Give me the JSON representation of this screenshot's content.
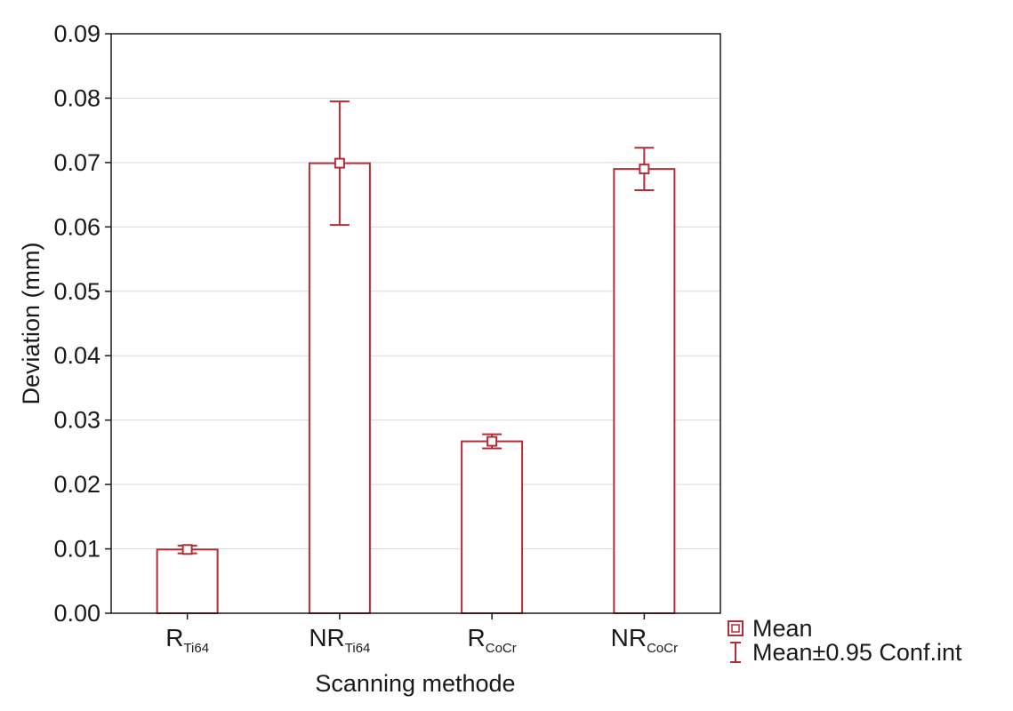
{
  "chart_data": {
    "type": "bar",
    "xlabel": "Scanning methode",
    "ylabel": "Deviation (mm)",
    "ylim": [
      0,
      0.09
    ],
    "yticks": [
      "0.00",
      "0.01",
      "0.02",
      "0.03",
      "0.04",
      "0.05",
      "0.06",
      "0.07",
      "0.08",
      "0.09"
    ],
    "grid": true,
    "categories": [
      {
        "main": "R",
        "sub": "Ti64"
      },
      {
        "main": "NR",
        "sub": "Ti64"
      },
      {
        "main": "R",
        "sub": "CoCr"
      },
      {
        "main": "NR",
        "sub": "CoCr"
      }
    ],
    "series": [
      {
        "name": "Mean",
        "values": [
          0.0099,
          0.0699,
          0.0267,
          0.069
        ],
        "ci_lower": [
          0.0093,
          0.0603,
          0.0256,
          0.0657
        ],
        "ci_upper": [
          0.0105,
          0.0795,
          0.0278,
          0.0723
        ]
      }
    ],
    "legend": {
      "position": "bottom-right",
      "items": [
        "Mean",
        "Mean±0.95 Conf.int"
      ]
    },
    "colors": {
      "bar": "#b22d35",
      "grid": "#d9d9d9",
      "axis": "#1a1a1a"
    }
  }
}
